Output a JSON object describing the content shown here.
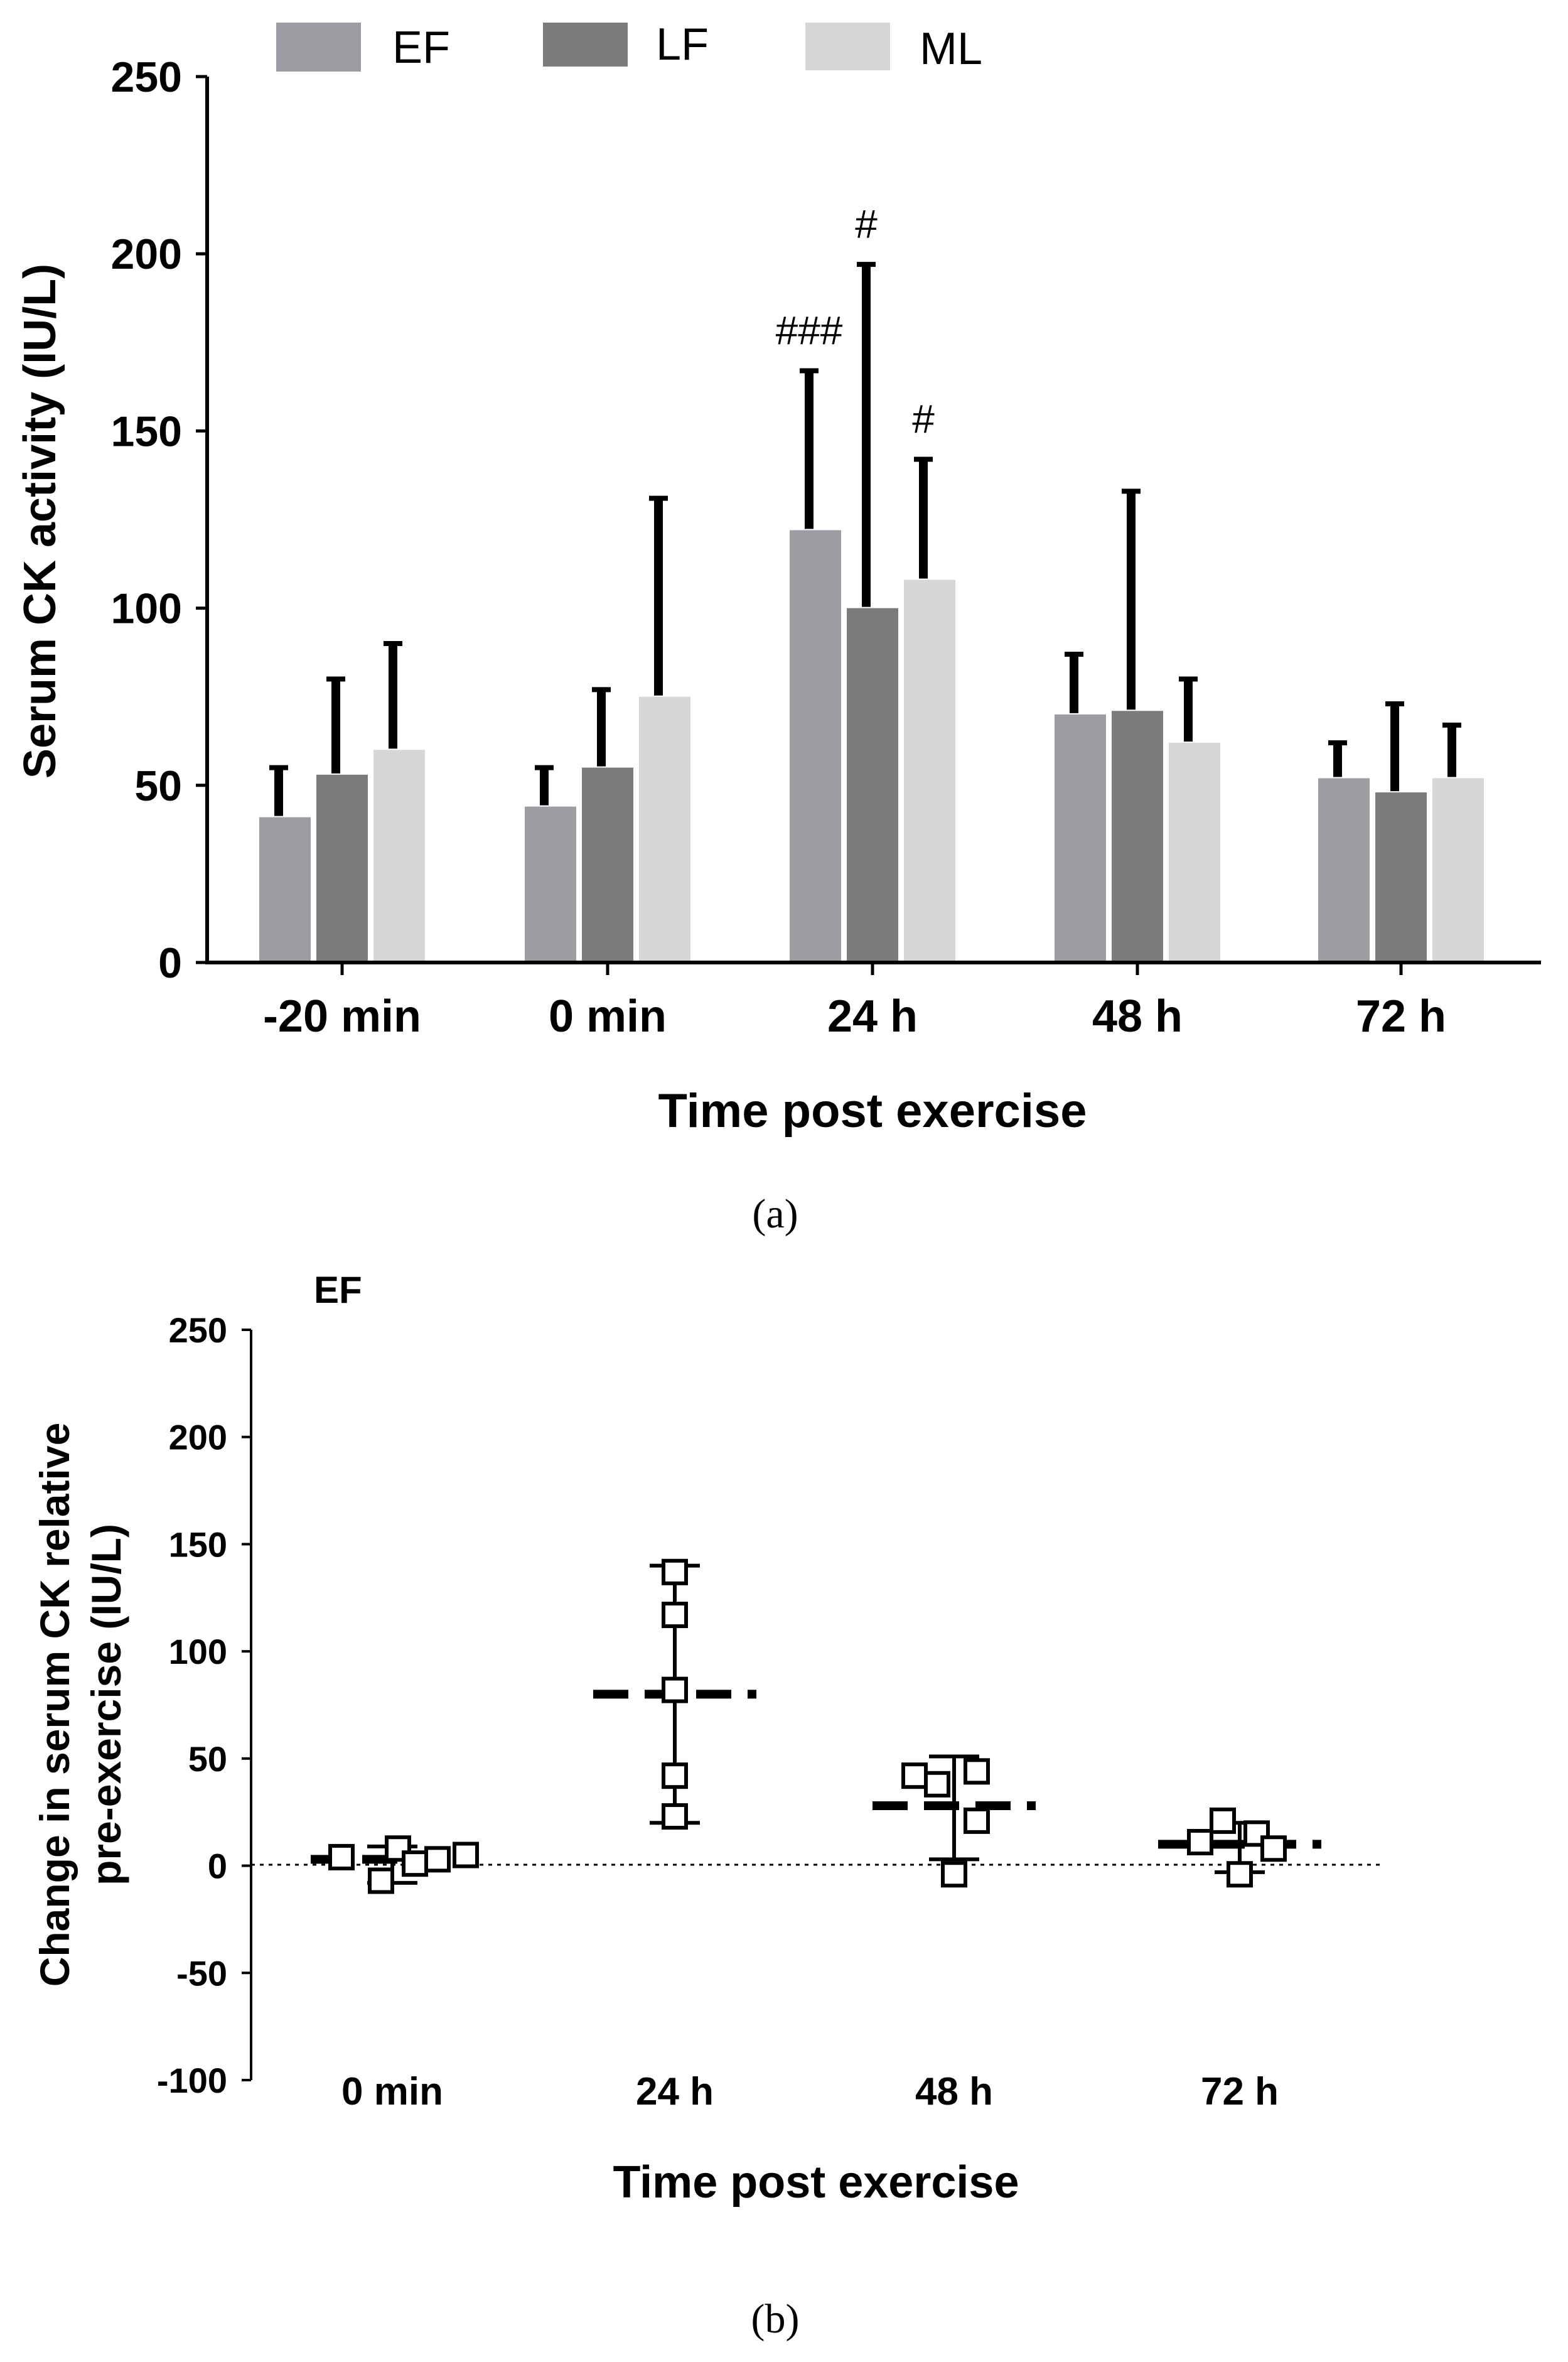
{
  "panel_labels": {
    "a": "(a)",
    "b": "(b)"
  },
  "colors": {
    "EF": "#9c9ca3",
    "LF": "#7b7b7b",
    "ML": "#d6d6d6",
    "ink": "#000000"
  },
  "chart_data": [
    {
      "type": "bar",
      "id": "a",
      "xlabel": "Time post exercise",
      "ylabel": "Serum CK activity (IU/L)",
      "ylim": [
        0,
        250
      ],
      "yticks": [
        "0",
        "50",
        "100",
        "150",
        "200",
        "250"
      ],
      "categories": [
        "-20 min",
        "0 min",
        "24 h",
        "48 h",
        "72 h"
      ],
      "legend": [
        "EF",
        "LF",
        "ML"
      ],
      "legend_position": "top",
      "series": [
        {
          "name": "EF",
          "values": [
            41,
            44,
            122,
            70,
            52
          ],
          "err_upper": [
            55,
            55,
            167,
            87,
            62
          ]
        },
        {
          "name": "LF",
          "values": [
            53,
            55,
            100,
            71,
            48
          ],
          "err_upper": [
            80,
            77,
            197,
            133,
            73
          ]
        },
        {
          "name": "ML",
          "values": [
            60,
            75,
            108,
            62,
            52
          ],
          "err_upper": [
            90,
            131,
            142,
            80,
            67
          ]
        }
      ],
      "annotations": [
        {
          "category": "24 h",
          "series": "EF",
          "text": "###"
        },
        {
          "category": "24 h",
          "series": "LF",
          "text": "#"
        },
        {
          "category": "24 h",
          "series": "ML",
          "text": "#"
        }
      ]
    },
    {
      "type": "scatter",
      "id": "b",
      "panel_title": "EF",
      "xlabel": "Time post exercise",
      "ylabel_lines": [
        "Change in serum CK relative",
        "pre-exercise (IU/L)"
      ],
      "ylim": [
        -100,
        250
      ],
      "yticks": [
        "-100",
        "-50",
        "0",
        "50",
        "100",
        "150",
        "200",
        "250"
      ],
      "categories": [
        "0 min",
        "24 h",
        "48 h",
        "72 h"
      ],
      "reference_line": 0,
      "groups": [
        {
          "category": "0 min",
          "median": 3,
          "range": [
            -8,
            9
          ],
          "points": [
            {
              "dx": -0.18,
              "y": 4
            },
            {
              "dx": -0.04,
              "y": -7
            },
            {
              "dx": 0.02,
              "y": 8
            },
            {
              "dx": 0.08,
              "y": 1
            },
            {
              "dx": 0.16,
              "y": 3
            },
            {
              "dx": 0.26,
              "y": 5
            }
          ]
        },
        {
          "category": "24 h",
          "median": 80,
          "range": [
            20,
            140
          ],
          "points": [
            {
              "dx": 0,
              "y": 137
            },
            {
              "dx": 0,
              "y": 117
            },
            {
              "dx": 0,
              "y": 82
            },
            {
              "dx": 0,
              "y": 42
            },
            {
              "dx": 0,
              "y": 23
            }
          ]
        },
        {
          "category": "48 h",
          "median": 28,
          "range": [
            3,
            51
          ],
          "points": [
            {
              "dx": -0.14,
              "y": 42
            },
            {
              "dx": -0.06,
              "y": 38
            },
            {
              "dx": 0.08,
              "y": 44
            },
            {
              "dx": 0.08,
              "y": 21
            },
            {
              "dx": 0,
              "y": -4
            }
          ]
        },
        {
          "category": "72 h",
          "median": 10,
          "range": [
            -3,
            20
          ],
          "points": [
            {
              "dx": -0.14,
              "y": 11
            },
            {
              "dx": -0.06,
              "y": 21
            },
            {
              "dx": 0.06,
              "y": 15
            },
            {
              "dx": 0.12,
              "y": 8
            },
            {
              "dx": 0,
              "y": -4
            }
          ]
        }
      ]
    }
  ]
}
